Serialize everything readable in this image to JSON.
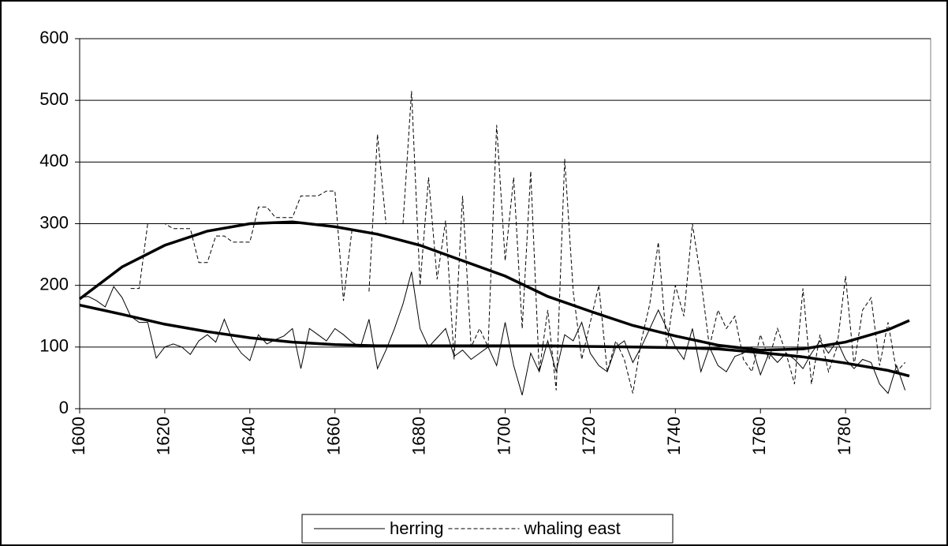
{
  "chart_data": {
    "type": "line",
    "x": [
      1600,
      1602,
      1604,
      1606,
      1608,
      1610,
      1612,
      1614,
      1616,
      1618,
      1620,
      1622,
      1624,
      1626,
      1628,
      1630,
      1632,
      1634,
      1636,
      1638,
      1640,
      1642,
      1644,
      1646,
      1648,
      1650,
      1652,
      1654,
      1656,
      1658,
      1660,
      1662,
      1664,
      1666,
      1668,
      1670,
      1672,
      1674,
      1676,
      1678,
      1680,
      1682,
      1684,
      1686,
      1688,
      1690,
      1692,
      1694,
      1696,
      1698,
      1700,
      1702,
      1704,
      1706,
      1708,
      1710,
      1712,
      1714,
      1716,
      1718,
      1720,
      1722,
      1724,
      1726,
      1728,
      1730,
      1732,
      1734,
      1736,
      1738,
      1740,
      1742,
      1744,
      1746,
      1748,
      1750,
      1752,
      1754,
      1756,
      1758,
      1760,
      1762,
      1764,
      1766,
      1768,
      1770,
      1772,
      1774,
      1776,
      1778,
      1780,
      1782,
      1784,
      1786,
      1788,
      1790,
      1792,
      1794
    ],
    "series": [
      {
        "name": "herring",
        "color": "#000000",
        "style": "solid",
        "values": [
          180,
          182,
          175,
          165,
          198,
          180,
          150,
          140,
          140,
          82,
          100,
          105,
          100,
          88,
          110,
          120,
          108,
          145,
          110,
          90,
          78,
          120,
          105,
          112,
          118,
          130,
          65,
          130,
          120,
          110,
          130,
          120,
          108,
          100,
          145,
          65,
          95,
          130,
          170,
          222,
          130,
          100,
          115,
          130,
          85,
          95,
          80,
          90,
          100,
          70,
          140,
          70,
          22,
          90,
          60,
          110,
          60,
          120,
          110,
          140,
          90,
          70,
          60,
          100,
          110,
          75,
          100,
          130,
          160,
          130,
          100,
          80,
          130,
          60,
          100,
          70,
          60,
          85,
          90,
          100,
          55,
          90,
          75,
          90,
          80,
          65,
          90,
          110,
          90,
          110,
          80,
          65,
          80,
          75,
          40,
          25,
          70,
          30
        ]
      },
      {
        "name": "whaling east",
        "color": "#000000",
        "style": "dashed",
        "values": [
          null,
          null,
          null,
          null,
          null,
          null,
          195,
          195,
          300,
          300,
          300,
          292,
          292,
          292,
          237,
          237,
          280,
          280,
          270,
          270,
          270,
          327,
          327,
          310,
          310,
          310,
          345,
          345,
          345,
          353,
          353,
          175,
          290,
          null,
          190,
          445,
          300,
          null,
          300,
          515,
          200,
          375,
          210,
          305,
          80,
          345,
          100,
          130,
          100,
          460,
          240,
          375,
          130,
          385,
          60,
          160,
          30,
          405,
          190,
          80,
          140,
          200,
          60,
          110,
          80,
          25,
          110,
          170,
          270,
          100,
          200,
          150,
          300,
          210,
          100,
          160,
          130,
          150,
          80,
          60,
          120,
          80,
          130,
          90,
          40,
          195,
          40,
          120,
          60,
          100,
          215,
          70,
          160,
          180,
          70,
          140,
          60,
          75
        ]
      }
    ],
    "trendline_x": [
      1600,
      1610,
      1620,
      1630,
      1640,
      1650,
      1660,
      1670,
      1680,
      1690,
      1700,
      1710,
      1720,
      1730,
      1740,
      1750,
      1760,
      1770,
      1780,
      1790,
      1795
    ],
    "trendlines": [
      {
        "color": "#000000",
        "values": [
          168,
          153,
          137,
          125,
          115,
          108,
          104,
          102,
          102,
          102,
          102,
          102,
          101,
          100,
          99,
          97,
          91,
          84,
          74,
          62,
          53
        ]
      },
      {
        "color": "#000000",
        "values": [
          178,
          230,
          265,
          288,
          300,
          303,
          295,
          283,
          265,
          240,
          215,
          182,
          158,
          135,
          118,
          103,
          95,
          97,
          108,
          128,
          143
        ]
      }
    ],
    "xlim": [
      1600,
      1800
    ],
    "xticks": [
      1600,
      1620,
      1640,
      1660,
      1680,
      1700,
      1720,
      1740,
      1760,
      1780
    ],
    "ylim": [
      0,
      600
    ],
    "yticks": [
      0,
      100,
      200,
      300,
      400,
      500,
      600
    ],
    "grid": true,
    "legend": "bottom"
  }
}
